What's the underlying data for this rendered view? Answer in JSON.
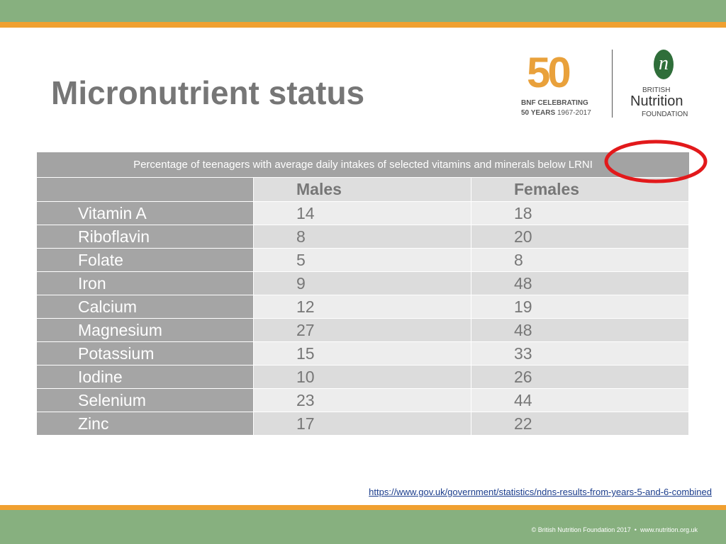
{
  "header": {
    "title": "Micronutrient status"
  },
  "logo": {
    "badge": "50",
    "badge_caption": "BNF CELEBRATING",
    "badge_years": "50 YEARS",
    "badge_span": "1967-2017",
    "org_line1": "BRITISH",
    "org_line2": "Nutrition",
    "org_line3": "FOUNDATION",
    "org_mark": "n"
  },
  "table": {
    "caption": "Percentage of teenagers with average daily intakes of selected vitamins and minerals below LRNI",
    "columns": [
      "Males",
      "Females"
    ],
    "rows": [
      [
        "Vitamin A",
        14,
        18
      ],
      [
        "Riboflavin",
        8,
        20
      ],
      [
        "Folate",
        5,
        8
      ],
      [
        "Iron",
        9,
        48
      ],
      [
        "Calcium",
        12,
        19
      ],
      [
        "Magnesium",
        27,
        48
      ],
      [
        "Potassium",
        15,
        33
      ],
      [
        "Iodine",
        10,
        26
      ],
      [
        "Selenium",
        23,
        44
      ],
      [
        "Zinc",
        17,
        22
      ]
    ]
  },
  "source_link": "https://www.gov.uk/government/statistics/ndns-results-from-years-5-and-6-combined",
  "footer": {
    "copyright": "© British Nutrition Foundation 2017  •  www.nutrition.org.uk"
  }
}
